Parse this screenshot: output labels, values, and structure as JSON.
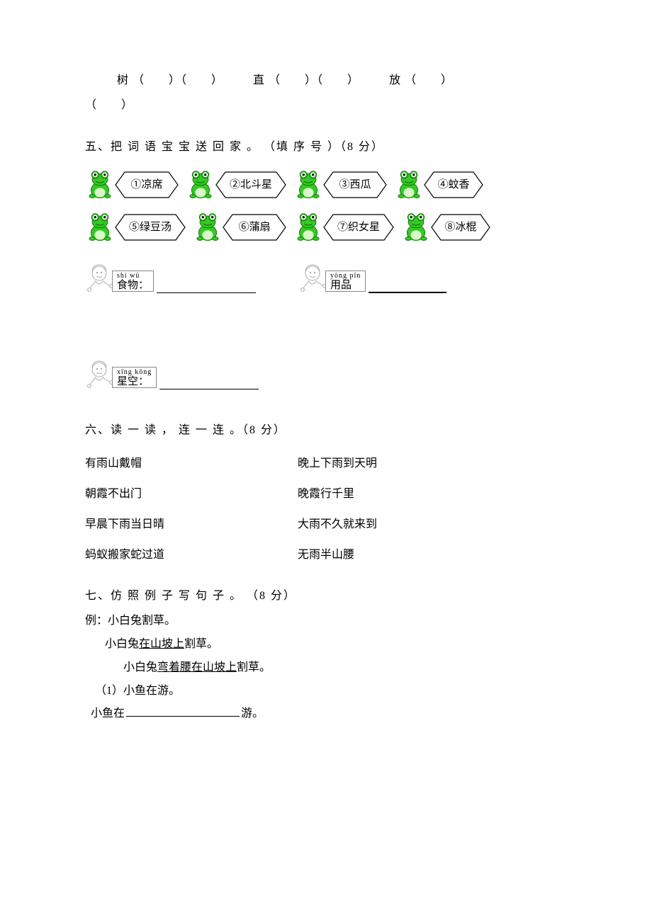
{
  "q4": {
    "chars": [
      "树",
      "直",
      "放"
    ],
    "paren_open": "（",
    "paren_close": "）"
  },
  "q5": {
    "title": "五、把 词 语 宝  宝  送   回  家 。 （填   序 号  ）（8 分）",
    "items": [
      {
        "num": "①",
        "word": "凉席",
        "hex_w": 90
      },
      {
        "num": "②",
        "word": "北斗星",
        "hex_w": 100
      },
      {
        "num": "③",
        "word": "西瓜",
        "hex_w": 90
      },
      {
        "num": "④",
        "word": "蚊香",
        "hex_w": 84
      },
      {
        "num": "⑤",
        "word": "绿豆汤",
        "hex_w": 100
      },
      {
        "num": "⑥",
        "word": "蒲扇",
        "hex_w": 90
      },
      {
        "num": "⑦",
        "word": "织女星",
        "hex_w": 100
      },
      {
        "num": "⑧",
        "word": "冰棍",
        "hex_w": 84
      }
    ],
    "cats": [
      {
        "pinyin": "shí  wù",
        "label": "食物：",
        "short_under": false
      },
      {
        "pinyin": "yòng pǐn",
        "label": "用品",
        "short_under": true
      },
      {
        "pinyin": "xīng kōng",
        "label": "星空：",
        "short_under": false
      }
    ]
  },
  "q6": {
    "title": "六、读 一 读 ，  连   一 连   。（8 分）",
    "rows": [
      {
        "left": "有雨山戴帽",
        "right": "晚上下雨到天明"
      },
      {
        "left": "朝霞不出门",
        "right": "晚霞行千里"
      },
      {
        "left": "早晨下雨当日晴",
        "right": "大雨不久就来到"
      },
      {
        "left": "蚂蚁搬家蛇过道",
        "right": "无雨半山腰"
      }
    ]
  },
  "q7": {
    "title": "七、仿   照  例 子 写  句 子 。 （8 分）",
    "example_label": "例：",
    "ex1": "小白兔割草。",
    "ex2_pre": "小白兔",
    "ex2_u": "在山坡上",
    "ex2_post": "割草。",
    "ex3_pre": "小白兔",
    "ex3_u": "弯着腰在山坡上",
    "ex3_post": "割草。",
    "item1_num": "（1）",
    "item1_text": "小鱼在游。",
    "item1_fill_pre": "小鱼在",
    "item1_fill_post": "游。"
  },
  "colors": {
    "frog_body": "#34c924",
    "frog_dark": "#0a6b00",
    "frog_belly": "#d9f7c8",
    "frog_eye_white": "#ffffff",
    "frog_eye_black": "#000000",
    "cartoon_line": "#aaaaaa",
    "black": "#000000",
    "hex_stroke": "#000000"
  }
}
